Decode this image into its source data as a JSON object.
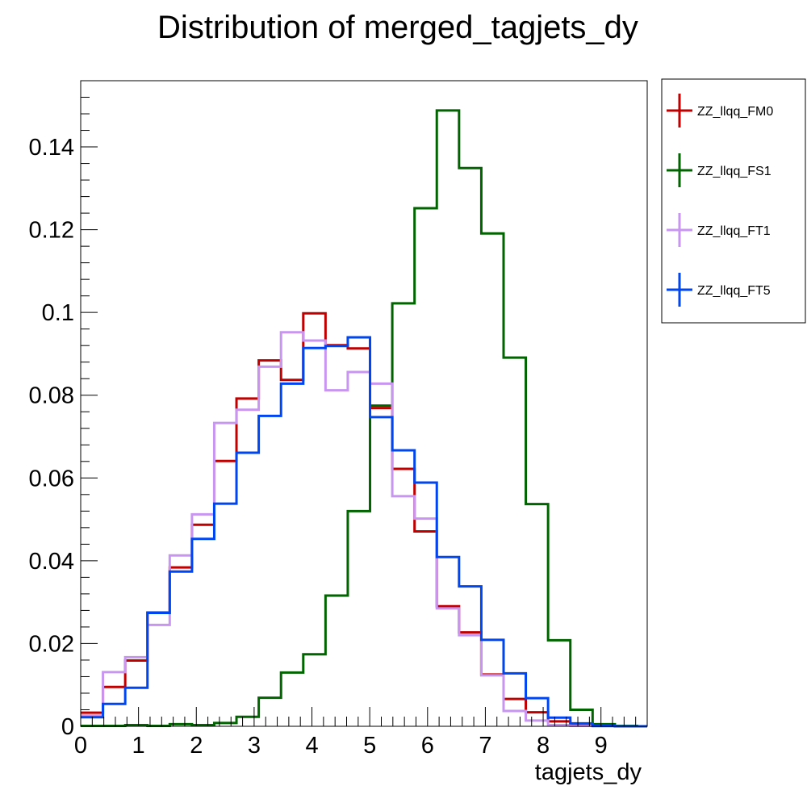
{
  "chart_data": {
    "type": "line",
    "title": "Distribution of merged_tagjets_dy",
    "xlabel": "tagjets_dy",
    "ylabel": "",
    "xlim": [
      0,
      9.8
    ],
    "ylim": [
      0,
      0.156
    ],
    "xticks": [
      "0",
      "1",
      "2",
      "3",
      "4",
      "5",
      "6",
      "7",
      "8",
      "9"
    ],
    "xtick_values": [
      0,
      1,
      2,
      3,
      4,
      5,
      6,
      7,
      8,
      9
    ],
    "yticks": [
      "0",
      "0.02",
      "0.04",
      "0.06",
      "0.08",
      "0.1",
      "0.12",
      "0.14"
    ],
    "ytick_values": [
      0,
      0.02,
      0.04,
      0.06,
      0.08,
      0.1,
      0.12,
      0.14
    ],
    "grid": false,
    "legend_position": "top-right outside",
    "bin_edges": [
      0,
      0.385,
      0.77,
      1.155,
      1.54,
      1.925,
      2.31,
      2.695,
      3.08,
      3.465,
      3.85,
      4.235,
      4.62,
      5.005,
      5.39,
      5.775,
      6.16,
      6.545,
      6.93,
      7.315,
      7.7,
      8.085,
      8.47,
      8.855,
      9.24,
      9.625,
      9.8
    ],
    "series": [
      {
        "name": "ZZ_llqq_FM0",
        "color": "#c00000",
        "values": [
          0.0033,
          0.0095,
          0.0159,
          0.0275,
          0.0384,
          0.0487,
          0.0641,
          0.0792,
          0.0884,
          0.0837,
          0.0998,
          0.0921,
          0.0913,
          0.0769,
          0.0622,
          0.0471,
          0.029,
          0.0227,
          0.0125,
          0.0066,
          0.0034,
          0.0012,
          0.0003,
          0.0001,
          0.0,
          0.0
        ]
      },
      {
        "name": "ZZ_llqq_FS1",
        "color": "#006400",
        "values": [
          0.0001,
          0.0001,
          0.0003,
          0.0001,
          0.0005,
          0.0003,
          0.0008,
          0.0023,
          0.0069,
          0.013,
          0.0174,
          0.0316,
          0.052,
          0.0775,
          0.1022,
          0.1252,
          0.1488,
          0.1349,
          0.1191,
          0.0891,
          0.0537,
          0.0208,
          0.004,
          0.0005,
          0.0001,
          0.0
        ]
      },
      {
        "name": "ZZ_llqq_FT1",
        "color": "#c896f0",
        "values": [
          0.0026,
          0.0131,
          0.0167,
          0.0245,
          0.0413,
          0.0512,
          0.0733,
          0.0765,
          0.0869,
          0.0952,
          0.0932,
          0.0812,
          0.0856,
          0.0828,
          0.0556,
          0.0502,
          0.0285,
          0.022,
          0.0123,
          0.0037,
          0.0014,
          0.0003,
          0.0001,
          0.0,
          0.0,
          0.0
        ]
      },
      {
        "name": "ZZ_llqq_FT5",
        "color": "#0046f0",
        "values": [
          0.0022,
          0.0054,
          0.0093,
          0.0274,
          0.0374,
          0.0453,
          0.0538,
          0.0661,
          0.075,
          0.0828,
          0.0914,
          0.0919,
          0.094,
          0.0747,
          0.0667,
          0.0589,
          0.0409,
          0.0338,
          0.0209,
          0.0128,
          0.0068,
          0.0021,
          0.0007,
          0.0001,
          0.0,
          0.0
        ]
      }
    ]
  }
}
